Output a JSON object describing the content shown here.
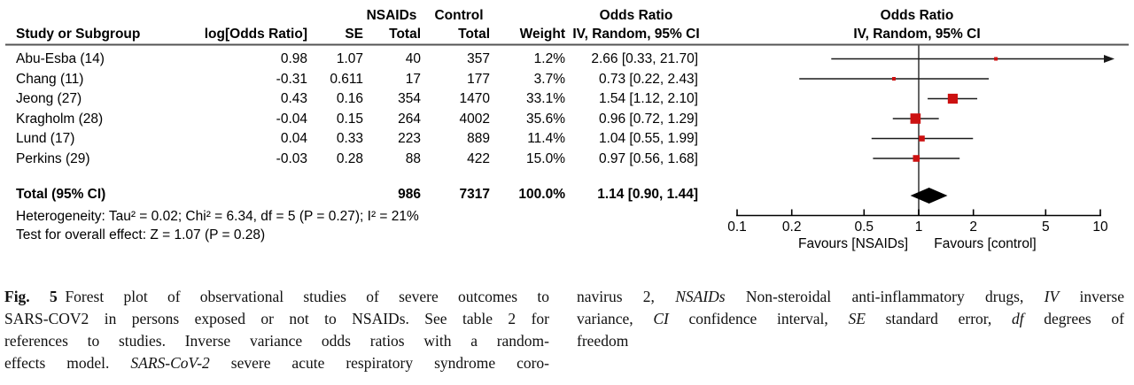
{
  "figure": {
    "header": {
      "group_nsaids": "NSAIDs",
      "group_control": "Control",
      "odds_ratio_left": "Odds Ratio",
      "odds_ratio_right": "Odds Ratio",
      "study": "Study or Subgroup",
      "log_or": "log[Odds Ratio]",
      "se": "SE",
      "total_nsaids": "Total",
      "total_control": "Total",
      "weight": "Weight",
      "iv_left": "IV, Random, 95% CI",
      "iv_right": "IV, Random, 95% CI"
    },
    "studies": [
      {
        "name": "Abu-Esba (14)",
        "log_or": "0.98",
        "se": "1.07",
        "nsaids_total": "40",
        "control_total": "357",
        "weight": "1.2%",
        "or_ci": "2.66 [0.33, 21.70]"
      },
      {
        "name": "Chang (11)",
        "log_or": "-0.31",
        "se": "0.611",
        "nsaids_total": "17",
        "control_total": "177",
        "weight": "3.7%",
        "or_ci": "0.73 [0.22, 2.43]"
      },
      {
        "name": "Jeong (27)",
        "log_or": "0.43",
        "se": "0.16",
        "nsaids_total": "354",
        "control_total": "1470",
        "weight": "33.1%",
        "or_ci": "1.54 [1.12, 2.10]"
      },
      {
        "name": "Kragholm (28)",
        "log_or": "-0.04",
        "se": "0.15",
        "nsaids_total": "264",
        "control_total": "4002",
        "weight": "35.6%",
        "or_ci": "0.96 [0.72, 1.29]"
      },
      {
        "name": "Lund (17)",
        "log_or": "0.04",
        "se": "0.33",
        "nsaids_total": "223",
        "control_total": "889",
        "weight": "11.4%",
        "or_ci": "1.04 [0.55, 1.99]"
      },
      {
        "name": "Perkins (29)",
        "log_or": "-0.03",
        "se": "0.28",
        "nsaids_total": "88",
        "control_total": "422",
        "weight": "15.0%",
        "or_ci": "0.97 [0.56, 1.68]"
      }
    ],
    "total": {
      "label": "Total (95% CI)",
      "nsaids_total": "986",
      "control_total": "7317",
      "weight": "100.0%",
      "or_ci": "1.14 [0.90, 1.44]"
    },
    "heterogeneity": "Heterogeneity: Tau² = 0.02; Chi² = 6.34, df = 5 (P = 0.27); I² = 21%",
    "overall_effect": "Test for overall effect: Z = 1.07 (P = 0.28)",
    "axis": {
      "ticks": [
        "0.1",
        "0.2",
        "0.5",
        "1",
        "2",
        "5",
        "10"
      ],
      "favours_left": "Favours [NSAIDs]",
      "favours_right": "Favours [control]"
    },
    "colors": {
      "marker_red": "#cc1111",
      "diamond_black": "#000000",
      "ci_line": "#1a1a1a",
      "frame_gray": "#545454",
      "axis_black": "#000000"
    }
  },
  "chart_data": {
    "type": "scatter",
    "subtype": "forest-plot",
    "title": "Odds Ratio IV, Random, 95% CI",
    "x_scale": "log10",
    "xlim": [
      0.1,
      10
    ],
    "x_ticks": [
      0.1,
      0.2,
      0.5,
      1,
      2,
      5,
      10
    ],
    "xlabel_left": "Favours [NSAIDs]",
    "xlabel_right": "Favours [control]",
    "null_line": 1,
    "studies": [
      {
        "label": "Abu-Esba (14)",
        "log_or": 0.98,
        "se": 1.07,
        "nsaids_total": 40,
        "control_total": 357,
        "weight_pct": 1.2,
        "or": 2.66,
        "ci_low": 0.33,
        "ci_high": 21.7,
        "clipped_right": true
      },
      {
        "label": "Chang (11)",
        "log_or": -0.31,
        "se": 0.611,
        "nsaids_total": 17,
        "control_total": 177,
        "weight_pct": 3.7,
        "or": 0.73,
        "ci_low": 0.22,
        "ci_high": 2.43,
        "clipped_right": false
      },
      {
        "label": "Jeong (27)",
        "log_or": 0.43,
        "se": 0.16,
        "nsaids_total": 354,
        "control_total": 1470,
        "weight_pct": 33.1,
        "or": 1.54,
        "ci_low": 1.12,
        "ci_high": 2.1,
        "clipped_right": false
      },
      {
        "label": "Kragholm (28)",
        "log_or": -0.04,
        "se": 0.15,
        "nsaids_total": 264,
        "control_total": 4002,
        "weight_pct": 35.6,
        "or": 0.96,
        "ci_low": 0.72,
        "ci_high": 1.29,
        "clipped_right": false
      },
      {
        "label": "Lund (17)",
        "log_or": 0.04,
        "se": 0.33,
        "nsaids_total": 223,
        "control_total": 889,
        "weight_pct": 11.4,
        "or": 1.04,
        "ci_low": 0.55,
        "ci_high": 1.99,
        "clipped_right": false
      },
      {
        "label": "Perkins (29)",
        "log_or": -0.03,
        "se": 0.28,
        "nsaids_total": 88,
        "control_total": 422,
        "weight_pct": 15.0,
        "or": 0.97,
        "ci_low": 0.56,
        "ci_high": 1.68,
        "clipped_right": false
      }
    ],
    "total": {
      "label": "Total (95% CI)",
      "nsaids_total": 986,
      "control_total": 7317,
      "weight_pct": 100.0,
      "or": 1.14,
      "ci_low": 0.9,
      "ci_high": 1.44
    },
    "heterogeneity": {
      "tau2": 0.02,
      "chi2": 6.34,
      "df": 5,
      "p": 0.27,
      "i2_pct": 21
    },
    "overall_effect": {
      "z": 1.07,
      "p": 0.28
    }
  },
  "caption": {
    "left": [
      {
        "just": true,
        "segs": [
          {
            "t": "Fig. 5",
            "b": true
          },
          {
            "t": " Forest plot of observational studies of severe outcomes to"
          }
        ]
      },
      {
        "just": true,
        "segs": [
          {
            "t": "SARS-COV2 in persons exposed or not to NSAIDs. See table 2 for"
          }
        ]
      },
      {
        "just": true,
        "segs": [
          {
            "t": "references to studies. Inverse variance odds ratios with a random-"
          }
        ]
      },
      {
        "just": true,
        "segs": [
          {
            "t": "effects model. "
          },
          {
            "t": "SARS-CoV-2",
            "i": true
          },
          {
            "t": " severe acute respiratory syndrome coro-"
          }
        ]
      }
    ],
    "right": [
      {
        "just": true,
        "segs": [
          {
            "t": "navirus 2, "
          },
          {
            "t": "NSAIDs",
            "i": true
          },
          {
            "t": " Non-steroidal anti-inflammatory drugs, "
          },
          {
            "t": "IV",
            "i": true
          },
          {
            "t": " inverse"
          }
        ]
      },
      {
        "just": true,
        "segs": [
          {
            "t": "variance, "
          },
          {
            "t": "CI",
            "i": true
          },
          {
            "t": " confidence interval, "
          },
          {
            "t": "SE",
            "i": true
          },
          {
            "t": " standard error, "
          },
          {
            "t": "df",
            "i": true
          },
          {
            "t": " degrees of"
          }
        ]
      },
      {
        "just": false,
        "segs": [
          {
            "t": "freedom"
          }
        ]
      }
    ]
  }
}
